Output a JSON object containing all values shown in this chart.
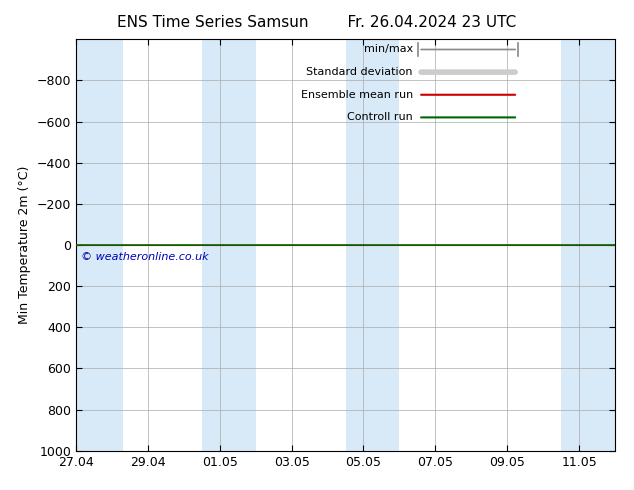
{
  "title": "ENS Time Series Samsun",
  "title2": "Fr. 26.04.2024 23 UTC",
  "ylabel": "Min Temperature 2m (°C)",
  "ylim_bottom": -1000,
  "ylim_top": 1000,
  "yticks": [
    -800,
    -600,
    -400,
    -200,
    0,
    200,
    400,
    600,
    800,
    1000
  ],
  "xtick_labels": [
    "27.04",
    "29.04",
    "01.05",
    "03.05",
    "05.05",
    "07.05",
    "09.05",
    "11.05"
  ],
  "xtick_positions": [
    0,
    2,
    4,
    6,
    8,
    10,
    12,
    14
  ],
  "xlim": [
    0,
    15
  ],
  "shaded_bands": [
    [
      0,
      1.3
    ],
    [
      3.5,
      5.0
    ],
    [
      7.5,
      9.0
    ],
    [
      13.5,
      15.0
    ]
  ],
  "band_color": "#d8eaf8",
  "control_run_y": 0,
  "control_run_color": "#006600",
  "ensemble_mean_color": "#cc0000",
  "minmax_line_color": "#888888",
  "stddev_fill_color": "#cccccc",
  "copyright_text": "© weatheronline.co.uk",
  "copyright_color": "#0000bb",
  "legend_items": [
    "min/max",
    "Standard deviation",
    "Ensemble mean run",
    "Controll run"
  ],
  "background_color": "#ffffff",
  "title_fontsize": 11,
  "ylabel_fontsize": 9,
  "tick_fontsize": 9,
  "legend_fontsize": 8
}
